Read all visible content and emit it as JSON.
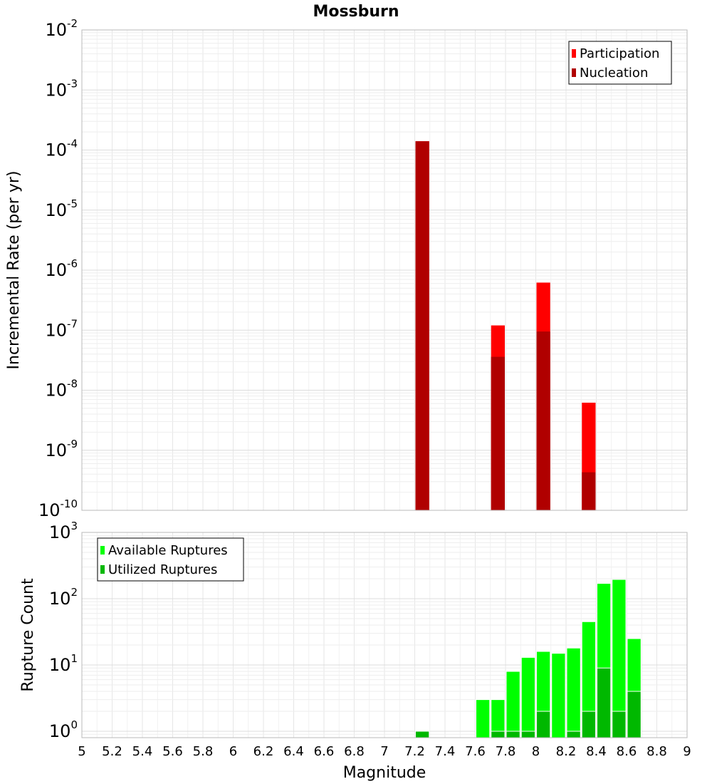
{
  "chart_data": [
    {
      "type": "bar",
      "title": "Mossburn",
      "ylabel": "Incremental Rate (per yr)",
      "xlabel": "",
      "y_scale": "log",
      "ylim": [
        1e-10,
        0.01
      ],
      "xlim": [
        5,
        9
      ],
      "bin_width": 0.1,
      "y_tick_exponents": [
        "-10",
        "-9",
        "-8",
        "-7",
        "-6",
        "-5",
        "-4",
        "-3",
        "-2"
      ],
      "legend_placement": "top-right",
      "grid": true,
      "series": [
        {
          "name": "Participation",
          "color": "#ff0000",
          "x": [
            7.25,
            7.75,
            8.05,
            8.35
          ],
          "values": [
            0.00014,
            1.2e-07,
            6.2e-07,
            6.2e-09
          ]
        },
        {
          "name": "Nucleation",
          "color": "#b00000",
          "x": [
            7.25,
            7.75,
            8.05,
            8.35
          ],
          "values": [
            0.00014,
            3.6e-08,
            9.5e-08,
            4.3e-10
          ]
        }
      ]
    },
    {
      "type": "bar",
      "title": "",
      "ylabel": "Rupture Count",
      "xlabel": "Magnitude",
      "y_scale": "log",
      "ylim": [
        0.8,
        1000
      ],
      "xlim": [
        5,
        9
      ],
      "bin_width": 0.1,
      "y_tick_exponents": [
        "0",
        "1",
        "2",
        "3"
      ],
      "x_ticks": [
        "5",
        "5.2",
        "5.4",
        "5.6",
        "5.8",
        "6",
        "6.2",
        "6.4",
        "6.6",
        "6.8",
        "7",
        "7.2",
        "7.4",
        "7.6",
        "7.8",
        "8",
        "8.2",
        "8.4",
        "8.6",
        "8.8",
        "9"
      ],
      "legend_placement": "top-left",
      "grid": true,
      "series": [
        {
          "name": "Available Ruptures",
          "color": "#00ff00",
          "x": [
            7.25,
            7.65,
            7.75,
            7.85,
            7.95,
            8.05,
            8.15,
            8.25,
            8.35,
            8.45,
            8.55,
            8.65
          ],
          "values": [
            1,
            3,
            3,
            8,
            13,
            16,
            15,
            18,
            45,
            170,
            195,
            25
          ]
        },
        {
          "name": "Utilized Ruptures",
          "color": "#00b800",
          "x": [
            7.25,
            7.75,
            7.85,
            7.95,
            8.05,
            8.25,
            8.35,
            8.45,
            8.55,
            8.65
          ],
          "values": [
            1,
            1,
            1,
            1,
            2,
            1,
            2,
            9,
            2,
            4
          ]
        }
      ]
    }
  ]
}
